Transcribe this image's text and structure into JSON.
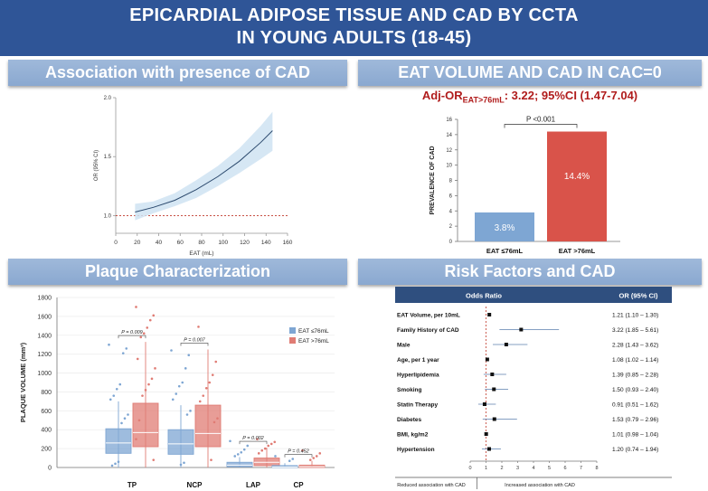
{
  "header": {
    "title_line1": "EPICARDIAL ADIPOSE TISSUE AND CAD BY CCTA",
    "title_line2": "IN YOUNG ADULTS (18-45)"
  },
  "panels": {
    "assoc_title": "Association with presence of CAD",
    "eat_title": "EAT VOLUME AND CAD IN CAC=0",
    "plaque_title": "Plaque Characterization",
    "risk_title": "Risk Factors and CAD"
  },
  "adj_or": {
    "prefix": "Adj-OR",
    "sub": "EAT>76mL",
    "value": ": 3.22; 95%CI (1.47-7.04)"
  },
  "chart_data": [
    {
      "type": "line",
      "title": "Association with presence of CAD",
      "xlabel": "EAT (mL)",
      "ylabel": "OR (95% CI)",
      "xlim": [
        0,
        160
      ],
      "ylim": [
        0.85,
        2.0
      ],
      "xticks": [
        0,
        20,
        40,
        60,
        80,
        100,
        120,
        140,
        160
      ],
      "yticks": [
        1.0,
        1.5,
        2.0
      ],
      "ytick_labels": [
        "1.0",
        "1.5",
        "2.0"
      ],
      "reference_line": 1.0,
      "x": [
        18,
        35,
        55,
        75,
        95,
        115,
        135,
        146
      ],
      "y": [
        1.03,
        1.07,
        1.13,
        1.22,
        1.33,
        1.46,
        1.62,
        1.72
      ],
      "ci_lower": [
        0.96,
        1.02,
        1.08,
        1.15,
        1.25,
        1.36,
        1.48,
        1.55
      ],
      "ci_upper": [
        1.1,
        1.12,
        1.19,
        1.3,
        1.42,
        1.57,
        1.76,
        1.88
      ]
    },
    {
      "type": "bar",
      "title": "EAT VOLUME AND CAD IN CAC=0",
      "ylabel": "PREVALENCE OF CAD",
      "ylim": [
        0,
        16
      ],
      "yticks": [
        0,
        2,
        4,
        6,
        8,
        10,
        12,
        14,
        16
      ],
      "categories": [
        "EAT ≤76mL",
        "EAT >76mL"
      ],
      "values": [
        3.8,
        14.4
      ],
      "value_labels": [
        "3.8%",
        "14.4%"
      ],
      "colors": [
        "#7ea6d3",
        "#d9534a"
      ],
      "significance": "P <0.001"
    },
    {
      "type": "box",
      "title": "Plaque Characterization",
      "ylabel": "PLAQUE VOLUME (mm³)",
      "ylim": [
        0,
        1800
      ],
      "yticks": [
        0,
        200,
        400,
        600,
        800,
        1000,
        1200,
        1400,
        1600,
        1800
      ],
      "categories": [
        "TP",
        "NCP",
        "LAP",
        "CP"
      ],
      "legend": [
        "EAT ≤76mL",
        "EAT >76mL"
      ],
      "legend_position": "right",
      "p_values": [
        "P = 0.009",
        "P = 0.007",
        "P = 0.002",
        "P = 0.452"
      ],
      "series": [
        {
          "name": "EAT ≤76mL",
          "color": "#7ea6d3",
          "boxes": [
            {
              "min": 0,
              "q1": 150,
              "median": 260,
              "q3": 410,
              "max": 700
            },
            {
              "min": 0,
              "q1": 140,
              "median": 250,
              "q3": 400,
              "max": 660
            },
            {
              "min": 0,
              "q1": 8,
              "median": 25,
              "q3": 55,
              "max": 110
            },
            {
              "min": 0,
              "q1": 0,
              "median": 5,
              "q3": 20,
              "max": 45
            }
          ],
          "outliers": [
            [
              1300,
              1260,
              1210,
              880,
              830,
              760,
              720,
              560,
              520,
              470,
              60,
              40,
              20
            ],
            [
              1240,
              1190,
              1050,
              900,
              860,
              780,
              720,
              600,
              560,
              50,
              30
            ],
            [
              280,
              230,
              190,
              160,
              140,
              120
            ],
            [
              120,
              90,
              70
            ]
          ]
        },
        {
          "name": "EAT >76mL",
          "color": "#e07c74",
          "boxes": [
            {
              "min": 0,
              "q1": 220,
              "median": 370,
              "q3": 680,
              "max": 1330
            },
            {
              "min": 0,
              "q1": 220,
              "median": 360,
              "q3": 660,
              "max": 1250
            },
            {
              "min": 0,
              "q1": 20,
              "median": 55,
              "q3": 100,
              "max": 210
            },
            {
              "min": 0,
              "q1": 0,
              "median": 8,
              "q3": 25,
              "max": 70
            }
          ],
          "outliers": [
            [
              1700,
              1610,
              1560,
              1480,
              1420,
              1380,
              1150,
              1050,
              940,
              880,
              820,
              760,
              500,
              300,
              80
            ],
            [
              1490,
              1120,
              980,
              900,
              840,
              760,
              700,
              520,
              480,
              80
            ],
            [
              300,
              270,
              250,
              230,
              200,
              180,
              150
            ],
            [
              180,
              150,
              120,
              100,
              80
            ]
          ]
        }
      ]
    },
    {
      "type": "forest",
      "title": "Risk Factors and CAD",
      "header_left": "Odds Ratio",
      "header_right": "OR (95% CI)",
      "xlim": [
        0,
        8
      ],
      "xticks": [
        0,
        1,
        2,
        3,
        4,
        5,
        6,
        7,
        8
      ],
      "reference": 1,
      "footer_left": "Reduced association with CAD",
      "footer_right": "Increased association with CAD",
      "rows": [
        {
          "label": "EAT Volume, per 10mL",
          "or": 1.21,
          "lo": 1.1,
          "hi": 1.3,
          "text": "1.21 (1.10 – 1.30)"
        },
        {
          "label": "Family History of CAD",
          "or": 3.22,
          "lo": 1.85,
          "hi": 5.61,
          "text": "3.22 (1.85 – 5.61)"
        },
        {
          "label": "Male",
          "or": 2.28,
          "lo": 1.43,
          "hi": 3.62,
          "text": "2.28 (1.43 – 3.62)"
        },
        {
          "label": "Age, per 1 year",
          "or": 1.08,
          "lo": 1.02,
          "hi": 1.14,
          "text": "1.08 (1.02 – 1.14)"
        },
        {
          "label": "Hyperlipidemia",
          "or": 1.39,
          "lo": 0.85,
          "hi": 2.28,
          "text": "1.39 (0.85 – 2.28)"
        },
        {
          "label": "Smoking",
          "or": 1.5,
          "lo": 0.93,
          "hi": 2.4,
          "text": "1.50 (0.93 – 2.40)"
        },
        {
          "label": "Statin Therapy",
          "or": 0.91,
          "lo": 0.51,
          "hi": 1.62,
          "text": "0.91 (0.51 – 1.62)"
        },
        {
          "label": "Diabetes",
          "or": 1.53,
          "lo": 0.79,
          "hi": 2.96,
          "text": "1.53 (0.79 – 2.96)"
        },
        {
          "label": "BMI, kg/m2",
          "or": 1.01,
          "lo": 0.98,
          "hi": 1.04,
          "text": "1.01 (0.98 – 1.04)"
        },
        {
          "label": "Hypertension",
          "or": 1.2,
          "lo": 0.74,
          "hi": 1.94,
          "text": "1.20 (0.74 – 1.94)"
        }
      ]
    }
  ]
}
